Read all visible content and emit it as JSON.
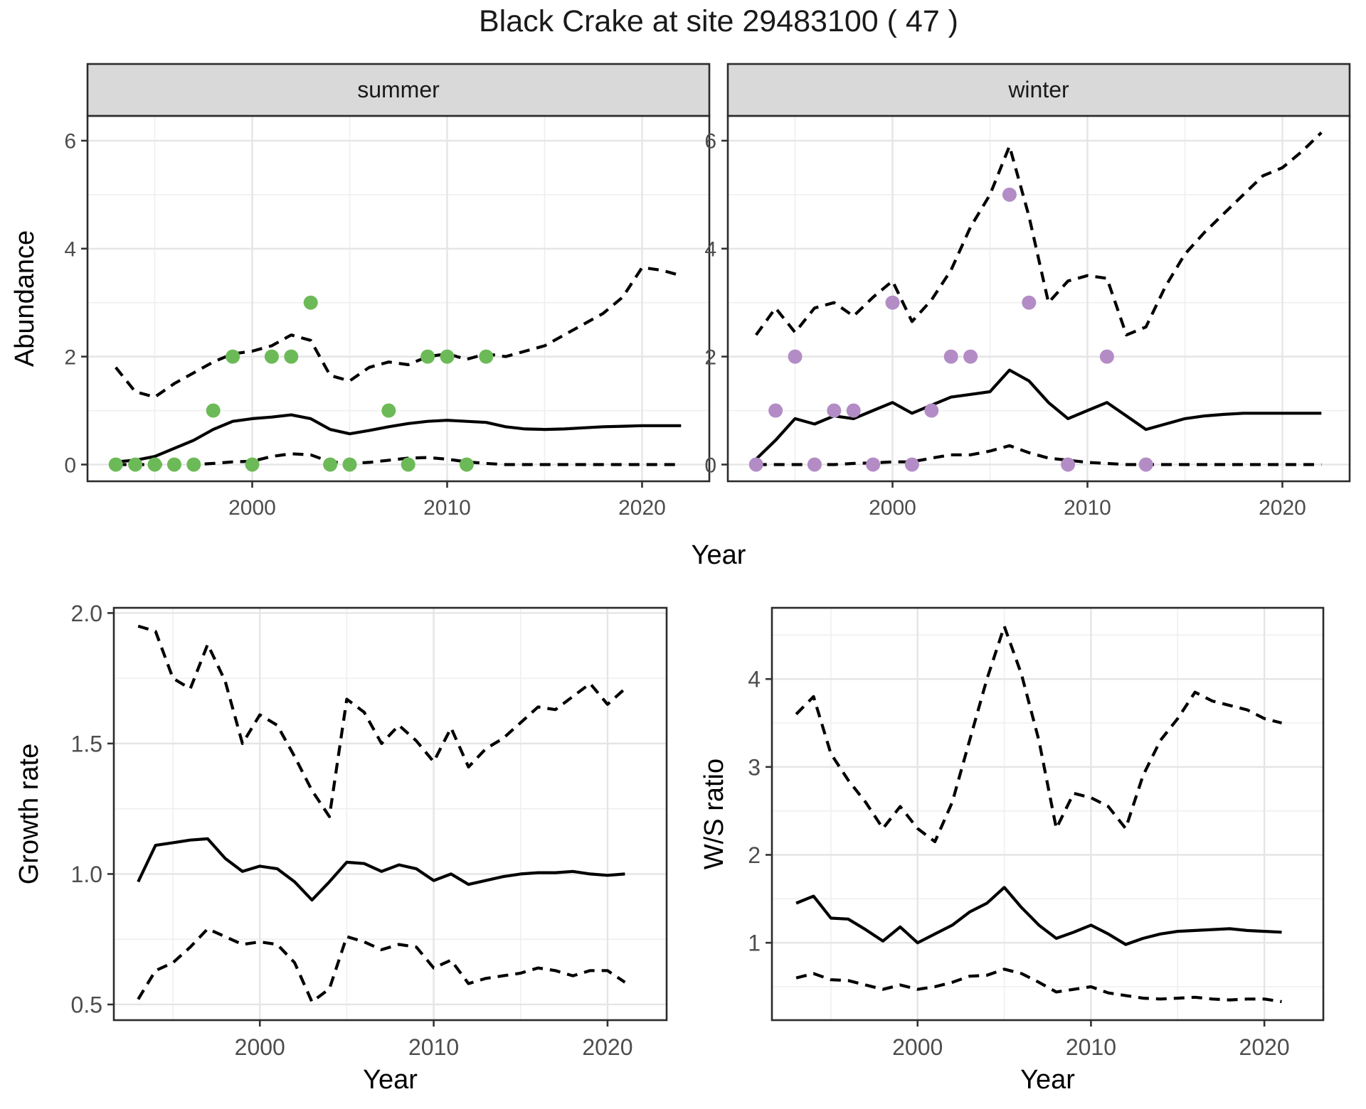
{
  "title": "Black Crake at site 29483100 ( 47 )",
  "facets": [
    {
      "label": "summer"
    },
    {
      "label": "winter"
    }
  ],
  "axis_titles": {
    "abundance_y": "Abundance",
    "year_top": "Year",
    "growth_y": "Growth rate",
    "ws_y": "W/S ratio",
    "year_bottom_left": "Year",
    "year_bottom_right": "Year"
  },
  "colors": {
    "summer_point": "#6cba57",
    "winter_point": "#b38cc6",
    "line": "#000000",
    "grid_major": "#e5e5e5",
    "grid_minor": "#efefef",
    "strip_bg": "#d9d9d9",
    "panel_border": "#2b2b2b",
    "tick_mark": "#333333",
    "tick_label": "#4d4d4d",
    "panel_bg": "#ffffff"
  },
  "chart_data": [
    {
      "type": "line",
      "panel": "abundance-summer",
      "facet_label": "summer",
      "ylabel": "Abundance",
      "xlabel": "Year",
      "xlim": [
        1991.55,
        2023.45
      ],
      "ylim": [
        -0.31,
        6.46
      ],
      "x_ticks": [
        2000,
        2010,
        2020
      ],
      "x_tick_labels": [
        "2000",
        "2010",
        "2020"
      ],
      "x_minor": [
        1995,
        2005,
        2015
      ],
      "y_ticks": [
        0,
        2,
        4,
        6
      ],
      "y_tick_labels": [
        "0",
        "2",
        "4",
        "6"
      ],
      "y_minor": [
        1,
        3,
        5
      ],
      "grid": true,
      "legend": "none",
      "series": [
        {
          "name": "upper_ci",
          "style": "dashed",
          "x": [
            1993,
            1994,
            1995,
            1996,
            1997,
            1998,
            1999,
            2000,
            2001,
            2002,
            2003,
            2004,
            2005,
            2006,
            2007,
            2008,
            2009,
            2010,
            2011,
            2012,
            2013,
            2014,
            2015,
            2016,
            2017,
            2018,
            2019,
            2020,
            2021,
            2022
          ],
          "values": [
            1.8,
            1.35,
            1.25,
            1.5,
            1.7,
            1.9,
            2.05,
            2.1,
            2.2,
            2.4,
            2.3,
            1.65,
            1.55,
            1.8,
            1.9,
            1.85,
            2.0,
            2.05,
            1.95,
            2.05,
            2.0,
            2.1,
            2.2,
            2.4,
            2.6,
            2.8,
            3.1,
            3.65,
            3.6,
            3.5
          ]
        },
        {
          "name": "lower_ci",
          "style": "dashed",
          "x": [
            1993,
            1994,
            1995,
            1996,
            1997,
            1998,
            1999,
            2000,
            2001,
            2002,
            2003,
            2004,
            2005,
            2006,
            2007,
            2008,
            2009,
            2010,
            2011,
            2012,
            2013,
            2014,
            2015,
            2016,
            2017,
            2018,
            2019,
            2020,
            2021,
            2022
          ],
          "values": [
            0,
            0,
            0,
            0,
            0,
            0.02,
            0.05,
            0.06,
            0.15,
            0.2,
            0.18,
            0.05,
            0.02,
            0.04,
            0.08,
            0.12,
            0.13,
            0.1,
            0.05,
            0.02,
            0,
            0,
            0,
            0,
            0,
            0,
            0,
            0,
            0,
            0
          ]
        },
        {
          "name": "median",
          "style": "solid",
          "x": [
            1993,
            1994,
            1995,
            1996,
            1997,
            1998,
            1999,
            2000,
            2001,
            2002,
            2003,
            2004,
            2005,
            2006,
            2007,
            2008,
            2009,
            2010,
            2011,
            2012,
            2013,
            2014,
            2015,
            2016,
            2017,
            2018,
            2019,
            2020,
            2021,
            2022
          ],
          "values": [
            0.05,
            0.08,
            0.15,
            0.3,
            0.45,
            0.65,
            0.8,
            0.85,
            0.88,
            0.92,
            0.85,
            0.65,
            0.57,
            0.63,
            0.7,
            0.76,
            0.8,
            0.82,
            0.8,
            0.78,
            0.7,
            0.66,
            0.65,
            0.66,
            0.68,
            0.7,
            0.71,
            0.72,
            0.72,
            0.72
          ]
        },
        {
          "name": "observations",
          "style": "points",
          "color_key": "summer_point",
          "x": [
            1993,
            1994,
            1995,
            1996,
            1997,
            1998,
            1999,
            2000,
            2001,
            2002,
            2003,
            2004,
            2005,
            2007,
            2008,
            2009,
            2010,
            2011,
            2012
          ],
          "values": [
            0,
            0,
            0,
            0,
            0,
            1,
            2,
            0,
            2,
            2,
            3,
            0,
            0,
            1,
            0,
            2,
            2,
            0,
            2
          ]
        }
      ]
    },
    {
      "type": "line",
      "panel": "abundance-winter",
      "facet_label": "winter",
      "ylabel": "Abundance",
      "xlabel": "Year",
      "xlim": [
        1991.55,
        2023.45
      ],
      "ylim": [
        -0.31,
        6.46
      ],
      "x_ticks": [
        2000,
        2010,
        2020
      ],
      "x_tick_labels": [
        "2000",
        "2010",
        "2020"
      ],
      "x_minor": [
        1995,
        2005,
        2015
      ],
      "y_ticks": [
        0,
        2,
        4,
        6
      ],
      "y_tick_labels": [
        "0",
        "2",
        "4",
        "6"
      ],
      "y_minor": [
        1,
        3,
        5
      ],
      "grid": true,
      "legend": "none",
      "series": [
        {
          "name": "upper_ci",
          "style": "dashed",
          "x": [
            1993,
            1994,
            1995,
            1996,
            1997,
            1998,
            1999,
            2000,
            2001,
            2002,
            2003,
            2004,
            2005,
            2006,
            2007,
            2008,
            2009,
            2010,
            2011,
            2012,
            2013,
            2014,
            2015,
            2016,
            2017,
            2018,
            2019,
            2020,
            2021,
            2022
          ],
          "values": [
            2.4,
            2.9,
            2.45,
            2.9,
            3.0,
            2.75,
            3.1,
            3.4,
            2.65,
            3.05,
            3.6,
            4.4,
            5.0,
            5.9,
            4.6,
            3.0,
            3.4,
            3.5,
            3.45,
            2.4,
            2.55,
            3.3,
            3.9,
            4.3,
            4.65,
            5.0,
            5.35,
            5.5,
            5.8,
            6.15
          ]
        },
        {
          "name": "lower_ci",
          "style": "dashed",
          "x": [
            1993,
            1994,
            1995,
            1996,
            1997,
            1998,
            1999,
            2000,
            2001,
            2002,
            2003,
            2004,
            2005,
            2006,
            2007,
            2008,
            2009,
            2010,
            2011,
            2012,
            2013,
            2014,
            2015,
            2016,
            2017,
            2018,
            2019,
            2020,
            2021,
            2022
          ],
          "values": [
            0,
            0,
            0,
            0,
            0,
            0.02,
            0.03,
            0.05,
            0.05,
            0.12,
            0.18,
            0.18,
            0.25,
            0.35,
            0.22,
            0.12,
            0.08,
            0.04,
            0.02,
            0,
            0,
            0,
            0,
            0,
            0,
            0,
            0,
            0,
            0,
            0
          ]
        },
        {
          "name": "median",
          "style": "solid",
          "x": [
            1993,
            1994,
            1995,
            1996,
            1997,
            1998,
            1999,
            2000,
            2001,
            2002,
            2003,
            2004,
            2005,
            2006,
            2007,
            2008,
            2009,
            2010,
            2011,
            2012,
            2013,
            2014,
            2015,
            2016,
            2017,
            2018,
            2019,
            2020,
            2021,
            2022
          ],
          "values": [
            0.1,
            0.45,
            0.85,
            0.75,
            0.9,
            0.85,
            1.0,
            1.15,
            0.95,
            1.1,
            1.25,
            1.3,
            1.35,
            1.75,
            1.55,
            1.15,
            0.85,
            1.0,
            1.15,
            0.9,
            0.65,
            0.75,
            0.85,
            0.9,
            0.93,
            0.95,
            0.95,
            0.95,
            0.95,
            0.95
          ]
        },
        {
          "name": "observations",
          "style": "points",
          "color_key": "winter_point",
          "x": [
            1993,
            1994,
            1995,
            1996,
            1997,
            1998,
            1999,
            2000,
            2001,
            2002,
            2003,
            2004,
            2006,
            2007,
            2009,
            2011,
            2013
          ],
          "values": [
            0,
            1,
            2,
            0,
            1,
            1,
            0,
            3,
            0,
            1,
            2,
            2,
            5,
            3,
            0,
            2,
            0
          ]
        }
      ]
    },
    {
      "type": "line",
      "panel": "growth-rate",
      "ylabel": "Growth rate",
      "xlabel": "Year",
      "xlim": [
        1991.6,
        2023.4
      ],
      "ylim": [
        0.44,
        2.02
      ],
      "x_ticks": [
        2000,
        2010,
        2020
      ],
      "x_tick_labels": [
        "2000",
        "2010",
        "2020"
      ],
      "x_minor": [
        1995,
        2005,
        2015
      ],
      "y_ticks": [
        0.5,
        1.0,
        1.5,
        2.0
      ],
      "y_tick_labels": [
        "0.5",
        "1.0",
        "1.5",
        "2.0"
      ],
      "y_minor": [
        0.75,
        1.25,
        1.75
      ],
      "grid": true,
      "legend": "none",
      "series": [
        {
          "name": "upper_ci",
          "style": "dashed",
          "x": [
            1993,
            1994,
            1995,
            1996,
            1997,
            1998,
            1999,
            2000,
            2001,
            2002,
            2003,
            2004,
            2005,
            2006,
            2007,
            2008,
            2009,
            2010,
            2011,
            2012,
            2013,
            2014,
            2015,
            2016,
            2017,
            2018,
            2019,
            2020,
            2021
          ],
          "values": [
            1.95,
            1.93,
            1.75,
            1.71,
            1.88,
            1.74,
            1.5,
            1.61,
            1.57,
            1.45,
            1.32,
            1.22,
            1.67,
            1.62,
            1.5,
            1.57,
            1.51,
            1.43,
            1.56,
            1.41,
            1.48,
            1.52,
            1.58,
            1.64,
            1.63,
            1.68,
            1.73,
            1.65,
            1.71
          ]
        },
        {
          "name": "lower_ci",
          "style": "dashed",
          "x": [
            1993,
            1994,
            1995,
            1996,
            1997,
            1998,
            1999,
            2000,
            2001,
            2002,
            2003,
            2004,
            2005,
            2006,
            2007,
            2008,
            2009,
            2010,
            2011,
            2012,
            2013,
            2014,
            2015,
            2016,
            2017,
            2018,
            2019,
            2020,
            2021
          ],
          "values": [
            0.52,
            0.63,
            0.66,
            0.72,
            0.79,
            0.76,
            0.73,
            0.74,
            0.73,
            0.66,
            0.51,
            0.56,
            0.76,
            0.74,
            0.71,
            0.73,
            0.72,
            0.64,
            0.67,
            0.58,
            0.6,
            0.61,
            0.62,
            0.64,
            0.63,
            0.61,
            0.63,
            0.63,
            0.585
          ]
        },
        {
          "name": "median",
          "style": "solid",
          "x": [
            1993,
            1994,
            1995,
            1996,
            1997,
            1998,
            1999,
            2000,
            2001,
            2002,
            2003,
            2004,
            2005,
            2006,
            2007,
            2008,
            2009,
            2010,
            2011,
            2012,
            2013,
            2014,
            2015,
            2016,
            2017,
            2018,
            2019,
            2020,
            2021
          ],
          "values": [
            0.97,
            1.11,
            1.12,
            1.13,
            1.135,
            1.06,
            1.01,
            1.03,
            1.02,
            0.97,
            0.9,
            0.97,
            1.045,
            1.04,
            1.01,
            1.035,
            1.02,
            0.975,
            1.0,
            0.96,
            0.975,
            0.99,
            1.0,
            1.005,
            1.005,
            1.01,
            1.0,
            0.995,
            1.0
          ]
        }
      ]
    },
    {
      "type": "line",
      "panel": "ws-ratio",
      "ylabel": "W/S ratio",
      "xlabel": "Year",
      "xlim": [
        1991.6,
        2023.4
      ],
      "ylim": [
        0.12,
        4.81
      ],
      "x_ticks": [
        2000,
        2010,
        2020
      ],
      "x_tick_labels": [
        "2000",
        "2010",
        "2020"
      ],
      "x_minor": [
        1995,
        2005,
        2015
      ],
      "y_ticks": [
        1,
        2,
        3,
        4
      ],
      "y_tick_labels": [
        "1",
        "2",
        "3",
        "4"
      ],
      "y_minor": [
        0.5,
        1.5,
        2.5,
        3.5,
        4.5
      ],
      "grid": true,
      "legend": "none",
      "series": [
        {
          "name": "upper_ci",
          "style": "dashed",
          "x": [
            1993,
            1994,
            1995,
            1996,
            1997,
            1998,
            1999,
            2000,
            2001,
            2002,
            2003,
            2004,
            2005,
            2006,
            2007,
            2008,
            2009,
            2010,
            2011,
            2012,
            2013,
            2014,
            2015,
            2016,
            2017,
            2018,
            2019,
            2020,
            2021
          ],
          "values": [
            3.6,
            3.8,
            3.15,
            2.85,
            2.6,
            2.3,
            2.55,
            2.3,
            2.15,
            2.6,
            3.3,
            4.0,
            4.6,
            4.05,
            3.3,
            2.3,
            2.7,
            2.65,
            2.55,
            2.3,
            2.9,
            3.3,
            3.55,
            3.85,
            3.75,
            3.7,
            3.65,
            3.55,
            3.5
          ]
        },
        {
          "name": "lower_ci",
          "style": "dashed",
          "x": [
            1993,
            1994,
            1995,
            1996,
            1997,
            1998,
            1999,
            2000,
            2001,
            2002,
            2003,
            2004,
            2005,
            2006,
            2007,
            2008,
            2009,
            2010,
            2011,
            2012,
            2013,
            2014,
            2015,
            2016,
            2017,
            2018,
            2019,
            2020,
            2021
          ],
          "values": [
            0.6,
            0.65,
            0.58,
            0.57,
            0.52,
            0.47,
            0.52,
            0.47,
            0.5,
            0.55,
            0.62,
            0.63,
            0.7,
            0.65,
            0.55,
            0.44,
            0.47,
            0.5,
            0.43,
            0.4,
            0.37,
            0.36,
            0.37,
            0.38,
            0.36,
            0.35,
            0.36,
            0.36,
            0.33
          ]
        },
        {
          "name": "median",
          "style": "solid",
          "x": [
            1993,
            1994,
            1995,
            1996,
            1997,
            1998,
            1999,
            2000,
            2001,
            2002,
            2003,
            2004,
            2005,
            2006,
            2007,
            2008,
            2009,
            2010,
            2011,
            2012,
            2013,
            2014,
            2015,
            2016,
            2017,
            2018,
            2019,
            2020,
            2021
          ],
          "values": [
            1.45,
            1.53,
            1.28,
            1.27,
            1.15,
            1.02,
            1.18,
            1.0,
            1.1,
            1.2,
            1.35,
            1.45,
            1.63,
            1.4,
            1.2,
            1.05,
            1.12,
            1.2,
            1.1,
            0.98,
            1.05,
            1.1,
            1.13,
            1.14,
            1.15,
            1.16,
            1.14,
            1.13,
            1.12
          ]
        }
      ]
    }
  ]
}
